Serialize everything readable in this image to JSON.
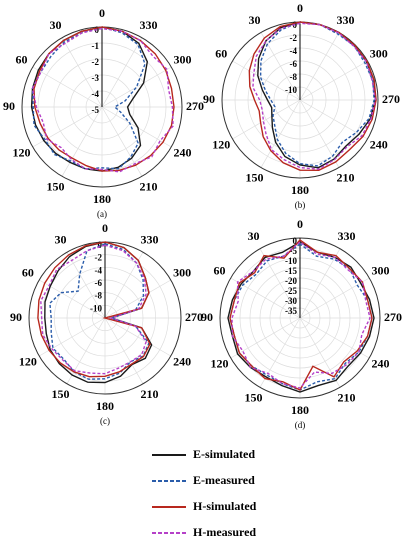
{
  "legend": [
    {
      "name": "E-simulated",
      "color": "#1a1a1a",
      "dashed": false
    },
    {
      "name": "E-measured",
      "color": "#2a5caa",
      "dashed": true
    },
    {
      "name": "H-simulated",
      "color": "#b8281e",
      "dashed": false
    },
    {
      "name": "H-measured",
      "color": "#b540c8",
      "dashed": true
    }
  ],
  "chart_data": [
    {
      "type": "polar",
      "caption": "(a)",
      "theta": [
        0,
        15,
        30,
        45,
        60,
        75,
        90,
        105,
        120,
        135,
        150,
        165,
        180,
        195,
        210,
        225,
        240,
        255,
        270,
        285,
        300,
        315,
        330,
        345
      ],
      "thetaticks": [
        0,
        30,
        60,
        90,
        120,
        150,
        180,
        210,
        240,
        270,
        300,
        330
      ],
      "rlim": [
        -5,
        0
      ],
      "rticks": [
        0,
        -1,
        -2,
        -3,
        -4,
        -5
      ],
      "series": [
        {
          "values": [
            0,
            -0.1,
            -0.2,
            -0.3,
            -0.4,
            -0.5,
            -0.6,
            -0.7,
            -0.8,
            -0.9,
            -1.0,
            -1.0,
            -1.0,
            -1.1,
            -1.3,
            -1.6,
            -2.4,
            -3.2,
            -3.4,
            -3.0,
            -2.0,
            -1.0,
            -0.4,
            -0.1
          ]
        },
        {
          "values": [
            0,
            -0.2,
            -0.3,
            -0.5,
            -0.6,
            -0.5,
            -0.7,
            -0.6,
            -0.9,
            -0.8,
            -1.1,
            -1.0,
            -1.2,
            -1.0,
            -1.4,
            -1.8,
            -3.0,
            -3.8,
            -4.2,
            -3.5,
            -2.5,
            -1.2,
            -0.5,
            -0.2
          ]
        },
        {
          "values": [
            0,
            -0.1,
            -0.2,
            -0.3,
            -0.5,
            -0.6,
            -0.8,
            -1.0,
            -1.1,
            -1.2,
            -1.3,
            -1.2,
            -1.0,
            -0.9,
            -0.8,
            -0.7,
            -0.6,
            -0.5,
            -0.5,
            -0.5,
            -0.4,
            -0.3,
            -0.2,
            -0.1
          ]
        },
        {
          "values": [
            -0.1,
            -0.2,
            -0.4,
            -0.3,
            -0.6,
            -0.5,
            -0.9,
            -1.2,
            -1.0,
            -1.4,
            -1.2,
            -1.0,
            -1.1,
            -0.8,
            -0.9,
            -0.6,
            -0.8,
            -0.4,
            -0.6,
            -0.7,
            -0.3,
            -0.5,
            -0.2,
            -0.1
          ]
        }
      ]
    },
    {
      "type": "polar",
      "caption": "(b)",
      "theta": [
        0,
        15,
        30,
        45,
        60,
        75,
        90,
        105,
        120,
        135,
        150,
        165,
        180,
        195,
        210,
        225,
        240,
        255,
        270,
        285,
        300,
        315,
        330,
        345
      ],
      "thetaticks": [
        0,
        30,
        60,
        90,
        120,
        150,
        180,
        210,
        240,
        270,
        300,
        330
      ],
      "rlim": [
        -12,
        0
      ],
      "rticks": [
        0,
        -2,
        -4,
        -6,
        -8,
        -10
      ],
      "series": [
        {
          "values": [
            0,
            -0.5,
            -1.5,
            -3,
            -4.5,
            -6,
            -7,
            -7.5,
            -7,
            -6,
            -4.5,
            -3,
            -2,
            -1.2,
            -1.5,
            -2,
            -1.5,
            -0.8,
            -0.4,
            -0.2,
            -0.2,
            -0.1,
            0,
            0
          ]
        },
        {
          "values": [
            0,
            -0.8,
            -2,
            -3.5,
            -5,
            -6.5,
            -7.5,
            -8,
            -7.2,
            -6.5,
            -5,
            -3.5,
            -2.2,
            -1.5,
            -2,
            -2.8,
            -2,
            -1,
            -0.6,
            -0.4,
            -0.5,
            -0.2,
            -0.3,
            0
          ]
        },
        {
          "values": [
            0,
            -0.3,
            -1,
            -2,
            -3,
            -4,
            -5,
            -5.5,
            -5,
            -4,
            -3,
            -2,
            -1.2,
            -0.8,
            -1,
            -1.2,
            -0.8,
            -0.5,
            -0.3,
            -0.2,
            -0.1,
            -0.1,
            0,
            0
          ]
        },
        {
          "values": [
            -0.2,
            -0.6,
            -1.5,
            -2.5,
            -3.8,
            -4.5,
            -5.8,
            -6,
            -5.5,
            -4.6,
            -3.2,
            -2.5,
            -1.6,
            -1,
            -1.4,
            -1.8,
            -1,
            -0.7,
            -0.4,
            -0.5,
            -0.2,
            -0.3,
            -0.1,
            0
          ]
        }
      ]
    },
    {
      "type": "polar",
      "caption": "(c)",
      "theta": [
        0,
        15,
        30,
        45,
        60,
        75,
        90,
        105,
        120,
        135,
        150,
        165,
        180,
        195,
        210,
        225,
        240,
        255,
        270,
        285,
        300,
        315,
        330,
        345
      ],
      "thetaticks": [
        0,
        30,
        60,
        90,
        120,
        150,
        180,
        210,
        240,
        270,
        300,
        330
      ],
      "rlim": [
        -12,
        0
      ],
      "rticks": [
        0,
        -2,
        -4,
        -6,
        -8,
        -10
      ],
      "series": [
        {
          "values": [
            0,
            -0.3,
            -0.8,
            -1.5,
            -2,
            -2.2,
            -2.5,
            -2.4,
            -2,
            -1.8,
            -1.6,
            -1.5,
            -1.8,
            -2.5,
            -3.5,
            -3,
            -3.5,
            -6,
            -11,
            -6,
            -4,
            -3,
            -1.5,
            -0.5
          ]
        },
        {
          "values": [
            -0.3,
            -1,
            -4,
            -6,
            -4,
            -3,
            -3.5,
            -3.2,
            -2.5,
            -2.8,
            -2.2,
            -2,
            -2.4,
            -3,
            -4,
            -3.5,
            -4,
            -7,
            -11,
            -7,
            -5,
            -3.5,
            -2,
            -0.8
          ]
        },
        {
          "values": [
            0,
            -0.2,
            -0.5,
            -0.8,
            -1,
            -1.2,
            -1.4,
            -1.6,
            -1.8,
            -2,
            -2.2,
            -2.4,
            -2.8,
            -3.2,
            -3.6,
            -3.4,
            -3.8,
            -6,
            -12,
            -6,
            -4,
            -3,
            -1.5,
            -0.5
          ]
        },
        {
          "values": [
            -0.5,
            -1,
            -1.5,
            -1.2,
            -1.8,
            -1.5,
            -2,
            -1.8,
            -2.3,
            -2.6,
            -2.4,
            -3,
            -3.2,
            -3.8,
            -4,
            -3.8,
            -4.5,
            -7,
            -11,
            -6.5,
            -4.5,
            -3.2,
            -2,
            -1
          ]
        }
      ]
    },
    {
      "type": "polar",
      "caption": "(d)",
      "theta": [
        0,
        15,
        30,
        45,
        60,
        75,
        90,
        105,
        120,
        135,
        150,
        165,
        180,
        195,
        210,
        225,
        240,
        255,
        270,
        285,
        300,
        315,
        330,
        345
      ],
      "thetaticks": [
        0,
        30,
        60,
        90,
        120,
        150,
        180,
        210,
        240,
        270,
        300,
        330
      ],
      "rlim": [
        -40,
        0
      ],
      "rticks": [
        0,
        -5,
        -10,
        -15,
        -20,
        -25,
        -30,
        -35
      ],
      "series": [
        {
          "values": [
            -2,
            -6,
            -5,
            -7,
            -6,
            -5,
            -4,
            -5,
            -4,
            -5,
            -6,
            -5,
            -3,
            -5,
            -4,
            -6,
            -5,
            -4,
            -3,
            -4,
            -5,
            -4,
            -5,
            -6
          ]
        },
        {
          "values": [
            -3,
            -8,
            -7,
            -9,
            -7,
            -6,
            -5,
            -6,
            -5,
            -6,
            -7,
            -6,
            -4,
            -7,
            -5,
            -8,
            -6,
            -5,
            -4,
            -5,
            -7,
            -5,
            -6,
            -8
          ]
        },
        {
          "values": [
            -1,
            -9,
            -4,
            -8,
            -5,
            -6,
            -5,
            -6,
            -5,
            -6,
            -5,
            -7,
            -4,
            -15,
            -6,
            -9,
            -7,
            -5,
            -4,
            -5,
            -4,
            -5,
            -4,
            -6
          ]
        },
        {
          "values": [
            -2,
            -8,
            -6,
            -7,
            -4,
            -8,
            -6,
            -5,
            -7,
            -5,
            -8,
            -6,
            -5,
            -12,
            -8,
            -7,
            -6,
            -8,
            -5,
            -6,
            -4,
            -6,
            -5,
            -7
          ]
        }
      ]
    }
  ]
}
